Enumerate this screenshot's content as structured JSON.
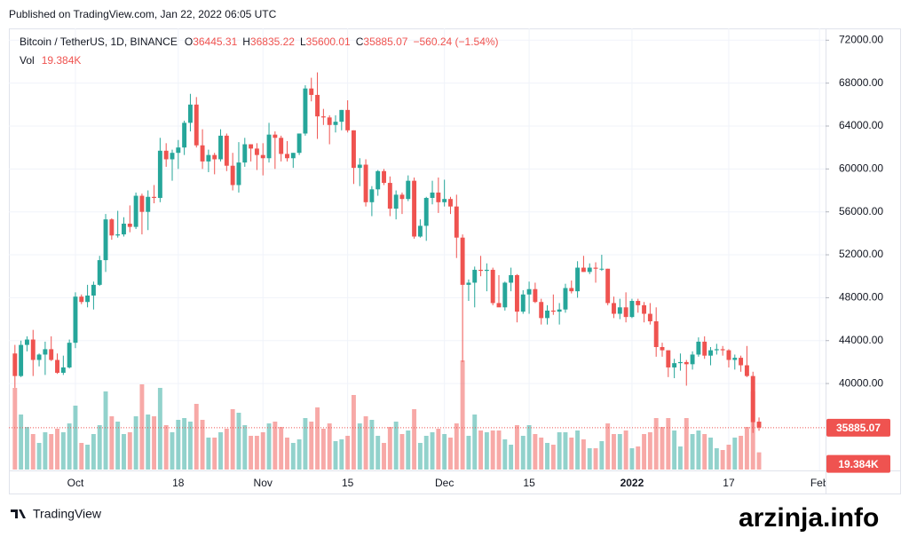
{
  "published": "Published on TradingView.com, Jan 22, 2022 06:05 UTC",
  "footer": "TradingView",
  "watermark": "arzinja.info",
  "chart_data": {
    "type": "candlestick",
    "symbol": "Bitcoin / TetherUS, 1D, BINANCE",
    "ohlc_keys": [
      "O",
      "H",
      "L",
      "C"
    ],
    "change": "−560.24 (−1.54%)",
    "volume_name": "Vol",
    "volume_value_label": "19.384K",
    "up_color": "#26a69a",
    "down_color": "#ef5350",
    "grid": true,
    "ylim": [
      31900,
      73100
    ],
    "yticks": [
      {
        "value": 40000,
        "label": "40000.00"
      },
      {
        "value": 44000,
        "label": "44000.00"
      },
      {
        "value": 48000,
        "label": "48000.00"
      },
      {
        "value": 52000,
        "label": "52000.00"
      },
      {
        "value": 56000,
        "label": "56000.00"
      },
      {
        "value": 60000,
        "label": "60000.00"
      },
      {
        "value": 64000,
        "label": "64000.00"
      },
      {
        "value": 68000,
        "label": "68000.00"
      },
      {
        "value": 72000,
        "label": "72000.00"
      }
    ],
    "xlim": [
      "2021-09-20",
      "2022-02-02"
    ],
    "xticks": [
      {
        "value": "2021-10-01",
        "label": "Oct"
      },
      {
        "value": "2021-10-18",
        "label": "18"
      },
      {
        "value": "2021-11-01",
        "label": "Nov"
      },
      {
        "value": "2021-11-15",
        "label": "15"
      },
      {
        "value": "2021-12-01",
        "label": "Dec"
      },
      {
        "value": "2021-12-15",
        "label": "15"
      },
      {
        "value": "2022-01-01",
        "label": "2022"
      },
      {
        "value": "2022-01-17",
        "label": "17"
      },
      {
        "value": "2022-02-01",
        "label": "Feb"
      }
    ],
    "x": [
      "2021-09-21",
      "2021-09-22",
      "2021-09-23",
      "2021-09-24",
      "2021-09-25",
      "2021-09-26",
      "2021-09-27",
      "2021-09-28",
      "2021-09-29",
      "2021-09-30",
      "2021-10-01",
      "2021-10-02",
      "2021-10-03",
      "2021-10-04",
      "2021-10-05",
      "2021-10-06",
      "2021-10-07",
      "2021-10-08",
      "2021-10-09",
      "2021-10-10",
      "2021-10-11",
      "2021-10-12",
      "2021-10-13",
      "2021-10-14",
      "2021-10-15",
      "2021-10-16",
      "2021-10-17",
      "2021-10-18",
      "2021-10-19",
      "2021-10-20",
      "2021-10-21",
      "2021-10-22",
      "2021-10-23",
      "2021-10-24",
      "2021-10-25",
      "2021-10-26",
      "2021-10-27",
      "2021-10-28",
      "2021-10-29",
      "2021-10-30",
      "2021-10-31",
      "2021-11-01",
      "2021-11-02",
      "2021-11-03",
      "2021-11-04",
      "2021-11-05",
      "2021-11-06",
      "2021-11-07",
      "2021-11-08",
      "2021-11-09",
      "2021-11-10",
      "2021-11-11",
      "2021-11-12",
      "2021-11-13",
      "2021-11-14",
      "2021-11-15",
      "2021-11-16",
      "2021-11-17",
      "2021-11-18",
      "2021-11-19",
      "2021-11-20",
      "2021-11-21",
      "2021-11-22",
      "2021-11-23",
      "2021-11-24",
      "2021-11-25",
      "2021-11-26",
      "2021-11-27",
      "2021-11-28",
      "2021-11-29",
      "2021-11-30",
      "2021-12-01",
      "2021-12-02",
      "2021-12-03",
      "2021-12-04",
      "2021-12-05",
      "2021-12-06",
      "2021-12-07",
      "2021-12-08",
      "2021-12-09",
      "2021-12-10",
      "2021-12-11",
      "2021-12-12",
      "2021-12-13",
      "2021-12-14",
      "2021-12-15",
      "2021-12-16",
      "2021-12-17",
      "2021-12-18",
      "2021-12-19",
      "2021-12-20",
      "2021-12-21",
      "2021-12-22",
      "2021-12-23",
      "2021-12-24",
      "2021-12-25",
      "2021-12-26",
      "2021-12-27",
      "2021-12-28",
      "2021-12-29",
      "2021-12-30",
      "2021-12-31",
      "2022-01-01",
      "2022-01-02",
      "2022-01-03",
      "2022-01-04",
      "2022-01-05",
      "2022-01-06",
      "2022-01-07",
      "2022-01-08",
      "2022-01-09",
      "2022-01-10",
      "2022-01-11",
      "2022-01-12",
      "2022-01-13",
      "2022-01-14",
      "2022-01-15",
      "2022-01-16",
      "2022-01-17",
      "2022-01-18",
      "2022-01-19",
      "2022-01-20",
      "2022-01-21",
      "2022-01-22"
    ],
    "open": [
      42800,
      40700,
      43600,
      44100,
      42200,
      42700,
      43200,
      42200,
      41000,
      41500,
      43800,
      48100,
      47600,
      48200,
      49200,
      51500,
      55300,
      53800,
      53900,
      54900,
      54600,
      57500,
      56000,
      57400,
      57300,
      61700,
      60900,
      61500,
      62000,
      64300,
      66000,
      62200,
      60700,
      61300,
      60900,
      63100,
      60300,
      58500,
      60600,
      62300,
      61900,
      61300,
      61000,
      63200,
      62900,
      61400,
      61000,
      61500,
      63300,
      67500,
      66900,
      64900,
      64800,
      64100,
      64400,
      65500,
      63600,
      60100,
      60400,
      56900,
      58100,
      59800,
      58700,
      56300,
      57600,
      57200,
      58900,
      53700,
      54700,
      57300,
      57800,
      56900,
      57200,
      56500,
      53600,
      49200,
      49400,
      50600,
      50500,
      50600,
      47500,
      47100,
      49400,
      50100,
      46700,
      48300,
      48800,
      47600,
      46100,
      46800,
      46700,
      46900,
      48900,
      48600,
      50800,
      50400,
      50800,
      50700,
      50700,
      47500,
      46500,
      47100,
      46200,
      47700,
      47300,
      46500,
      45800,
      43400,
      43100,
      41500,
      41900,
      42000,
      41800,
      42700,
      43900,
      42600,
      43100,
      43200,
      43100,
      42200,
      42400,
      41700,
      40700,
      36445.31
    ],
    "high": [
      43600,
      44000,
      44400,
      45000,
      42800,
      43900,
      44400,
      42800,
      42600,
      44100,
      48500,
      48300,
      49200,
      49500,
      51900,
      55800,
      55400,
      56100,
      55500,
      56600,
      57800,
      57700,
      58000,
      58500,
      62900,
      62400,
      61800,
      62700,
      64500,
      67000,
      66700,
      63700,
      61800,
      61500,
      63700,
      63300,
      61500,
      62500,
      62900,
      62300,
      62400,
      62400,
      64300,
      63500,
      63100,
      62600,
      61500,
      63300,
      67800,
      68500,
      69000,
      65600,
      65000,
      65000,
      65500,
      66400,
      63600,
      61000,
      60900,
      58400,
      59900,
      60000,
      59300,
      58000,
      57800,
      59400,
      59200,
      55300,
      57400,
      58900,
      59200,
      59000,
      57400,
      57600,
      53900,
      49700,
      50900,
      51900,
      51200,
      50800,
      50100,
      49500,
      50800,
      50200,
      48700,
      49500,
      49400,
      47900,
      47300,
      48300,
      47500,
      49300,
      49600,
      51400,
      51900,
      51200,
      51300,
      52000,
      50700,
      48100,
      47900,
      48500,
      47900,
      47900,
      47600,
      47500,
      47100,
      43800,
      43100,
      42300,
      42800,
      42200,
      43000,
      44300,
      44400,
      43400,
      43700,
      43500,
      43200,
      42700,
      42600,
      43500,
      41100,
      36835.22
    ],
    "low": [
      39600,
      40600,
      43000,
      40700,
      41600,
      40800,
      42100,
      40900,
      40800,
      41400,
      43300,
      47400,
      47100,
      46900,
      49100,
      50400,
      53400,
      53600,
      53700,
      54100,
      54400,
      53900,
      54300,
      56800,
      56900,
      60200,
      58900,
      60000,
      61300,
      63500,
      62000,
      60000,
      59700,
      59500,
      60700,
      59800,
      58000,
      57800,
      60200,
      60700,
      59900,
      59400,
      60600,
      60000,
      60700,
      60700,
      60100,
      61300,
      63100,
      66300,
      62800,
      64100,
      62300,
      63400,
      63600,
      63400,
      58600,
      58400,
      56500,
      55600,
      57500,
      58500,
      55600,
      55300,
      55800,
      57000,
      53500,
      53600,
      53300,
      56700,
      55900,
      56500,
      55800,
      51700,
      42000,
      47700,
      47100,
      50000,
      48600,
      47300,
      47300,
      46800,
      48600,
      45700,
      46500,
      46500,
      47500,
      45500,
      45500,
      46400,
      45500,
      46600,
      48400,
      48000,
      50400,
      50200,
      49400,
      50500,
      47300,
      46100,
      46000,
      45700,
      46100,
      46600,
      45700,
      45500,
      42500,
      42500,
      40600,
      40500,
      41200,
      39800,
      41300,
      42500,
      42300,
      41700,
      42700,
      42600,
      41500,
      41300,
      41100,
      40600,
      35400,
      35600.01
    ],
    "close": [
      40700,
      43600,
      44100,
      42200,
      42700,
      43200,
      42200,
      41000,
      41500,
      43800,
      48100,
      47600,
      48200,
      49200,
      51500,
      55300,
      53800,
      53900,
      54900,
      54600,
      57500,
      56000,
      57400,
      57300,
      61700,
      60900,
      61500,
      62000,
      64300,
      66000,
      62200,
      60700,
      61300,
      60900,
      63100,
      60300,
      58500,
      60600,
      62300,
      61900,
      61300,
      61000,
      63200,
      62900,
      61400,
      61000,
      61500,
      63300,
      67500,
      66900,
      64900,
      64800,
      64100,
      64400,
      65500,
      63600,
      60100,
      60400,
      56900,
      58100,
      59800,
      58700,
      56300,
      57600,
      57200,
      58900,
      53700,
      54700,
      57300,
      57800,
      56900,
      57200,
      56500,
      53600,
      49200,
      49400,
      50600,
      50500,
      50600,
      47500,
      47100,
      49400,
      50100,
      46700,
      48300,
      48800,
      47600,
      46100,
      46800,
      46700,
      46900,
      48900,
      48600,
      50800,
      50400,
      50800,
      50700,
      50700,
      47500,
      46500,
      47100,
      46200,
      47700,
      47300,
      46500,
      45800,
      43400,
      43100,
      41500,
      41900,
      42000,
      41800,
      42700,
      43900,
      42600,
      43100,
      43200,
      43100,
      42200,
      42400,
      41700,
      40700,
      36400,
      35885.07
    ],
    "volume": [
      92,
      62,
      48,
      40,
      30,
      42,
      40,
      46,
      42,
      52,
      72,
      30,
      28,
      40,
      50,
      88,
      60,
      54,
      40,
      42,
      60,
      96,
      62,
      60,
      92,
      50,
      42,
      56,
      58,
      54,
      74,
      56,
      36,
      36,
      42,
      46,
      68,
      64,
      50,
      38,
      38,
      42,
      52,
      54,
      48,
      36,
      30,
      34,
      58,
      54,
      70,
      46,
      52,
      32,
      34,
      38,
      84,
      52,
      60,
      56,
      38,
      30,
      48,
      54,
      40,
      44,
      68,
      30,
      38,
      42,
      46,
      40,
      36,
      52,
      123,
      38,
      62,
      44,
      42,
      44,
      44,
      34,
      28,
      50,
      38,
      50,
      40,
      36,
      30,
      28,
      42,
      42,
      36,
      44,
      34,
      24,
      24,
      32,
      52,
      40,
      40,
      44,
      24,
      26,
      40,
      42,
      58,
      48,
      58,
      44,
      26,
      58,
      40,
      44,
      40,
      36,
      24,
      22,
      28,
      36,
      38,
      48,
      88,
      19.384
    ]
  }
}
